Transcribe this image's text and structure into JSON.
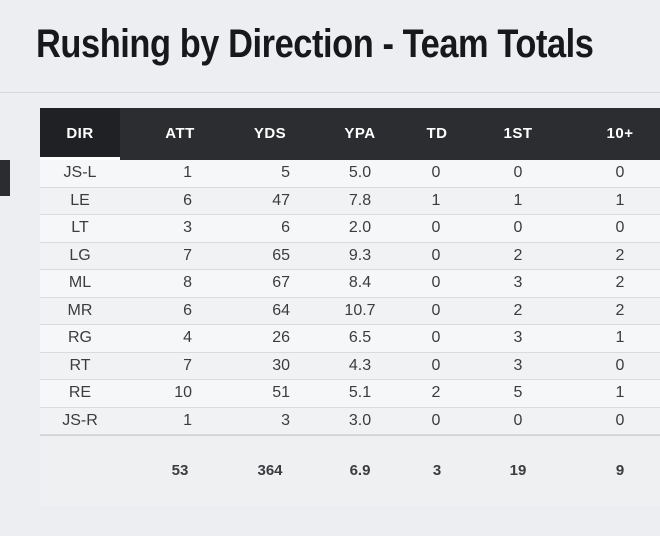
{
  "title": "Rushing by Direction - Team Totals",
  "columns": [
    "DIR",
    "ATT",
    "YDS",
    "YPA",
    "TD",
    "1ST",
    "10+"
  ],
  "rows": [
    {
      "dir": "JS-L",
      "att": "1",
      "yds": "5",
      "ypa": "5.0",
      "td": "0",
      "first": "0",
      "ten": "0"
    },
    {
      "dir": "LE",
      "att": "6",
      "yds": "47",
      "ypa": "7.8",
      "td": "1",
      "first": "1",
      "ten": "1"
    },
    {
      "dir": "LT",
      "att": "3",
      "yds": "6",
      "ypa": "2.0",
      "td": "0",
      "first": "0",
      "ten": "0"
    },
    {
      "dir": "LG",
      "att": "7",
      "yds": "65",
      "ypa": "9.3",
      "td": "0",
      "first": "2",
      "ten": "2"
    },
    {
      "dir": "ML",
      "att": "8",
      "yds": "67",
      "ypa": "8.4",
      "td": "0",
      "first": "3",
      "ten": "2"
    },
    {
      "dir": "MR",
      "att": "6",
      "yds": "64",
      "ypa": "10.7",
      "td": "0",
      "first": "2",
      "ten": "2"
    },
    {
      "dir": "RG",
      "att": "4",
      "yds": "26",
      "ypa": "6.5",
      "td": "0",
      "first": "3",
      "ten": "1"
    },
    {
      "dir": "RT",
      "att": "7",
      "yds": "30",
      "ypa": "4.3",
      "td": "0",
      "first": "3",
      "ten": "0"
    },
    {
      "dir": "RE",
      "att": "10",
      "yds": "51",
      "ypa": "5.1",
      "td": "2",
      "first": "5",
      "ten": "1"
    },
    {
      "dir": "JS-R",
      "att": "1",
      "yds": "3",
      "ypa": "3.0",
      "td": "0",
      "first": "0",
      "ten": "0"
    }
  ],
  "totals": {
    "att": "53",
    "yds": "364",
    "ypa": "6.9",
    "td": "3",
    "first": "19",
    "ten": "9"
  },
  "colors": {
    "header_bg": "#2b2d31",
    "header_text": "#ffffff",
    "title": "#16181b"
  }
}
